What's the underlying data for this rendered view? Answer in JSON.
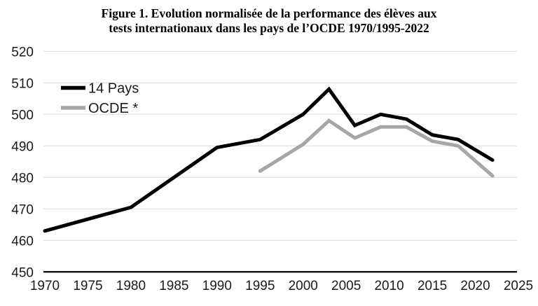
{
  "figure": {
    "title_line1": "Figure 1. Evolution normalisée de la performance des élèves aux",
    "title_line2": "tests internationaux dans les pays de l’OCDE 1970/1995-2022"
  },
  "chart_data": {
    "type": "line",
    "title": "Figure 1. Evolution normalisée de la performance des élèves aux tests internationaux dans les pays de l’OCDE 1970/1995-2022",
    "xlabel": "",
    "ylabel": "",
    "x_axis": {
      "min": 1970,
      "max": 2025,
      "tick_step": 5,
      "tick_labels": [
        "1970",
        "1975",
        "1980",
        "1985",
        "1990",
        "1995",
        "2000",
        "2005",
        "2010",
        "2015",
        "2020",
        "2025"
      ]
    },
    "y_axis": {
      "min": 450,
      "max": 520,
      "tick_step": 10,
      "tick_labels": [
        "450",
        "460",
        "470",
        "480",
        "490",
        "500",
        "510",
        "520"
      ]
    },
    "grid": {
      "horizontal": true,
      "color": "#d9d9d9"
    },
    "axis_color": "#000000",
    "label_color": "#1a1a1a",
    "legend": {
      "position": "top-left",
      "items": [
        {
          "label": "14 Pays",
          "color": "#000000"
        },
        {
          "label": "OCDE *",
          "color": "#a6a6a6"
        }
      ]
    },
    "series": [
      {
        "name": "OCDE *",
        "color": "#a6a6a6",
        "stroke_width": 5,
        "points": [
          [
            1995,
            482
          ],
          [
            2000,
            490.5
          ],
          [
            2003,
            498
          ],
          [
            2006,
            492.5
          ],
          [
            2009,
            496
          ],
          [
            2012,
            496
          ],
          [
            2015,
            491.5
          ],
          [
            2018,
            490
          ],
          [
            2022,
            480.5
          ]
        ]
      },
      {
        "name": "14 Pays",
        "color": "#000000",
        "stroke_width": 5,
        "points": [
          [
            1970,
            463
          ],
          [
            1980,
            470.5
          ],
          [
            1990,
            489.5
          ],
          [
            1995,
            492
          ],
          [
            2000,
            500
          ],
          [
            2003,
            508
          ],
          [
            2006,
            496.5
          ],
          [
            2009,
            500
          ],
          [
            2012,
            498.5
          ],
          [
            2015,
            493.5
          ],
          [
            2018,
            492
          ],
          [
            2022,
            485.5
          ]
        ]
      }
    ]
  }
}
